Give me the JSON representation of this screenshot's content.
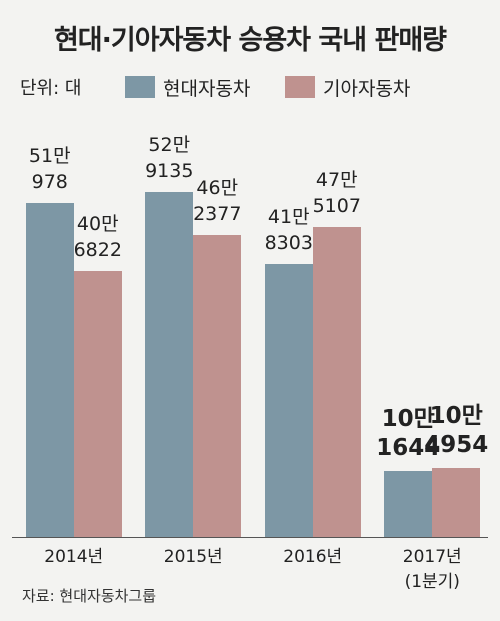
{
  "chart_data": {
    "type": "bar",
    "title": "현대·기아자동차 승용차 국내 판매량",
    "unit_label": "단위: 대",
    "source": "자료: 현대자동차그룹",
    "categories": [
      "2014년",
      "2015년",
      "2016년",
      "2017년\n(1분기)"
    ],
    "series": [
      {
        "name": "현대자동차",
        "color": "#7d97a5",
        "values": [
          510978,
          529135,
          418303,
          101644
        ],
        "value_labels": [
          "51만\n978",
          "52만\n9135",
          "41만\n8303",
          "10만\n1644"
        ]
      },
      {
        "name": "기아자동차",
        "color": "#bf928f",
        "values": [
          406822,
          462377,
          475107,
          104954
        ],
        "value_labels": [
          "40만\n6822",
          "46만\n2377",
          "47만\n5107",
          "10만\n4954"
        ]
      }
    ],
    "ylim": [
      0,
      550000
    ]
  }
}
